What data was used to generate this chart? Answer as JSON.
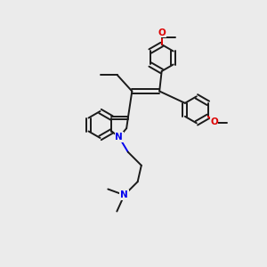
{
  "bg_color": "#ebebeb",
  "bond_color": "#1a1a1a",
  "n_color": "#0000ee",
  "o_color": "#dd0000",
  "lw": 1.4,
  "dbo": 0.03,
  "r": 0.18,
  "xlim": [
    -1.6,
    1.6
  ],
  "ylim": [
    -1.8,
    1.8
  ]
}
